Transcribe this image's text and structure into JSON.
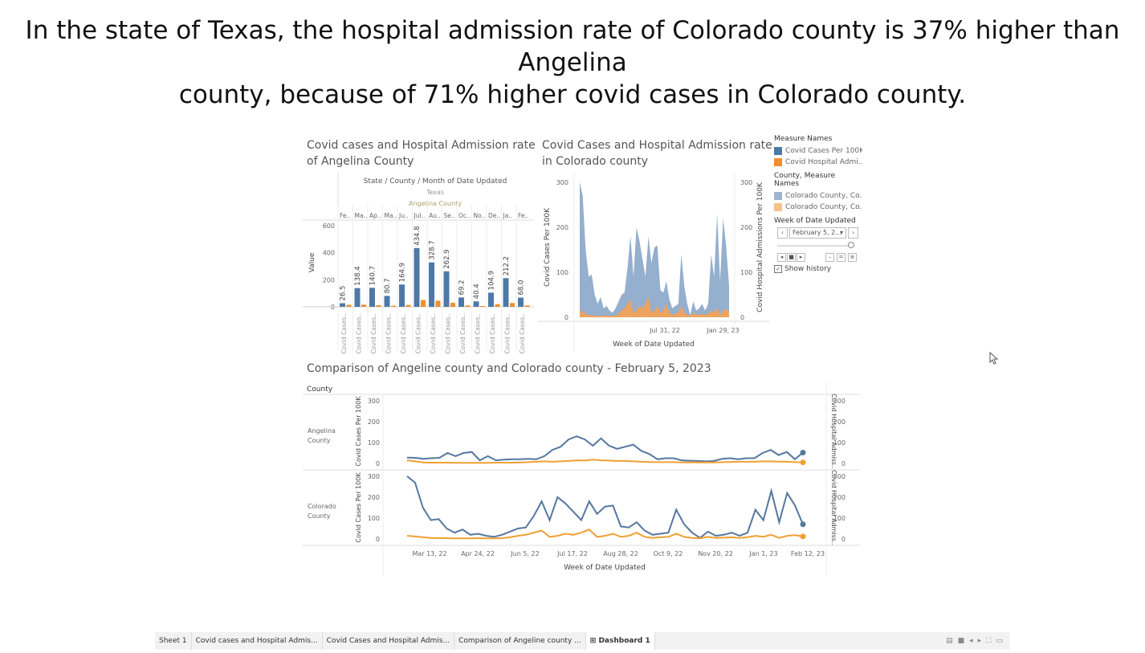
{
  "headline": {
    "line1": "In the state of Texas, the hospital admission rate of Colorado county is 37% higher than Angelina",
    "line2": "county, because of 71% higher covid cases in Colorado county."
  },
  "sheet1": {
    "title_line1": "Covid cases and Hospital Admission rate",
    "title_line2": "of Angelina County",
    "header_line1": "State / County / Month of Date Updated",
    "header_state": "Texas",
    "header_county": "Angelina County",
    "y_label": "Value",
    "colors": {
      "cases": "#4e79a7",
      "hosp": "#f28e2b"
    }
  },
  "sheet2": {
    "title_line1": "Covid Cases and Hospital Admission rate",
    "title_line2": "in Colorado county",
    "y_left": "Covid Cases Per 100K",
    "y_right": "Covid Hospital Admissions Per 100K",
    "x_label": "Week of Date Updated",
    "x_ticks": [
      "Jul 31, 22",
      "Jan 29, 23"
    ]
  },
  "sheet3": {
    "title": "Comparison of Angeline county and Colorado county - February 5, 2023",
    "county_header": "County",
    "rows": [
      "Angelina County",
      "Colorado County"
    ],
    "row_line1": [
      "Angelina",
      "Colorado"
    ],
    "row_line2": [
      "County",
      "County"
    ],
    "y_left": "Covid Cases Per 100K",
    "y_right": "Covid Hospital Admiss..",
    "x_label": "Week of Date Updated",
    "x_ticks": [
      "Mar 13, 22",
      "Apr 24, 22",
      "Jun 5, 22",
      "Jul 17, 22",
      "Aug 28, 22",
      "Oct 9, 22",
      "Nov 20, 22",
      "Jan 1, 23",
      "Feb 12, 23"
    ]
  },
  "legend": {
    "measure_header": "Measure Names",
    "measure_items": [
      {
        "label": "Covid Cases Per 100K",
        "color": "#4e79a7"
      },
      {
        "label": "Covid Hospital Admi...",
        "color": "#f28e2b"
      }
    ],
    "county_header": "County, Measure Names",
    "county_items": [
      {
        "label": "Colorado County, Co...",
        "color": "#a0b4d0"
      },
      {
        "label": "Colorado County, Co...",
        "color": "#f7c189"
      }
    ],
    "week_header": "Week of Date Updated",
    "week_value": "February 5, 2...",
    "show_history": "Show history"
  },
  "tabs": [
    "Sheet 1",
    "Covid cases and Hospital Admis...",
    "Covid Cases and Hospital Admis...",
    "Comparison of Angeline county ...",
    "Dashboard 1"
  ],
  "chart_data": [
    {
      "type": "bar",
      "title": "Covid cases and Hospital Admission rate of Angelina County",
      "ylabel": "Value",
      "ylim": [
        0,
        600
      ],
      "y_ticks": [
        0,
        200,
        400,
        600
      ],
      "categories": [
        "Fe..",
        "Ma..",
        "Ap..",
        "Ma..",
        "Ju..",
        "Jul..",
        "Au..",
        "Se..",
        "Oc..",
        "No..",
        "De..",
        "Ja..",
        "Fe.."
      ],
      "bar_label": "Covid Cases..",
      "series": [
        {
          "name": "Covid Cases Per 100K",
          "values": [
            26.5,
            138.4,
            140.7,
            80.7,
            164.9,
            434.8,
            328.7,
            262.9,
            69.2,
            40.4,
            104.9,
            212.2,
            68.0
          ]
        },
        {
          "name": "Covid Hospital Admi...",
          "values": [
            15,
            16,
            12,
            8,
            14,
            50,
            45,
            30,
            10,
            6,
            20,
            28,
            10
          ]
        }
      ]
    },
    {
      "type": "area",
      "title": "Covid Cases and Hospital Admission rate in Colorado county",
      "xlabel": "Week of Date Updated",
      "ylim": [
        0,
        300
      ],
      "y_ticks": [
        0,
        100,
        200,
        300
      ],
      "x_ticks": [
        "Jul 31, 22",
        "Jan 29, 23"
      ],
      "series": [
        {
          "name": "Colorado County, Co...",
          "values": [
            300,
            270,
            150,
            90,
            95,
            50,
            30,
            45,
            20,
            25,
            15,
            10,
            20,
            35,
            50,
            55,
            110,
            180,
            90,
            200,
            170,
            130,
            90,
            180,
            120,
            155,
            160,
            60,
            55,
            80,
            40,
            20,
            25,
            30,
            140,
            70,
            30,
            5,
            35,
            15,
            20,
            30,
            15,
            30,
            140,
            90,
            230,
            80,
            220,
            160,
            70
          ]
        },
        {
          "name": "Colorado County, Co...",
          "values": [
            15,
            12,
            8,
            5,
            4,
            4,
            3,
            3,
            3,
            4,
            3,
            3,
            4,
            8,
            15,
            20,
            30,
            40,
            10,
            15,
            25,
            20,
            30,
            45,
            10,
            15,
            25,
            10,
            15,
            30,
            10,
            5,
            8,
            10,
            25,
            10,
            5,
            3,
            10,
            5,
            6,
            8,
            5,
            8,
            15,
            10,
            20,
            5,
            15,
            18,
            12
          ]
        }
      ]
    },
    {
      "type": "line",
      "title": "Comparison of Angeline county and Colorado county - February 5, 2023",
      "xlabel": "Week of Date Updated",
      "ylim": [
        0,
        300
      ],
      "y_ticks": [
        0,
        100,
        200,
        300
      ],
      "x_ticks": [
        "Mar 13, 22",
        "Apr 24, 22",
        "Jun 5, 22",
        "Jul 17, 22",
        "Aug 28, 22",
        "Oct 9, 22",
        "Nov 20, 22",
        "Jan 1, 23",
        "Feb 12, 23"
      ],
      "panels": [
        {
          "county": "Angelina County",
          "series": [
            {
              "name": "Covid Cases Per 100K",
              "values": [
                28,
                27,
                22,
                25,
                27,
                50,
                35,
                50,
                55,
                15,
                35,
                15,
                18,
                20,
                20,
                22,
                20,
                35,
                65,
                80,
                115,
                130,
                115,
                85,
                120,
                85,
                70,
                80,
                90,
                60,
                45,
                20,
                25,
                25,
                15,
                13,
                12,
                10,
                12,
                22,
                25,
                20,
                25,
                25,
                50,
                65,
                40,
                55,
                20,
                52
              ]
            },
            {
              "name": "Covid Hospital Admi...",
              "values": [
                15,
                10,
                5,
                4,
                4,
                4,
                3,
                3,
                3,
                3,
                3,
                4,
                4,
                4,
                5,
                6,
                8,
                10,
                8,
                10,
                12,
                15,
                14,
                18,
                15,
                14,
                12,
                12,
                10,
                8,
                7,
                6,
                6,
                6,
                5,
                5,
                5,
                5,
                5,
                6,
                7,
                8,
                8,
                8,
                10,
                10,
                9,
                8,
                6,
                5
              ]
            }
          ]
        },
        {
          "county": "Colorado County",
          "series": [
            {
              "name": "Covid Cases Per 100K",
              "values": [
                300,
                270,
                150,
                90,
                95,
                50,
                30,
                45,
                20,
                25,
                15,
                10,
                20,
                35,
                50,
                55,
                110,
                180,
                90,
                200,
                170,
                130,
                90,
                180,
                120,
                155,
                160,
                60,
                55,
                80,
                40,
                20,
                25,
                30,
                140,
                70,
                30,
                5,
                35,
                15,
                20,
                30,
                15,
                30,
                140,
                90,
                230,
                80,
                220,
                160,
                70
              ]
            },
            {
              "name": "Covid Hospital Admi...",
              "values": [
                15,
                12,
                8,
                5,
                4,
                4,
                3,
                3,
                3,
                4,
                3,
                3,
                4,
                8,
                15,
                20,
                30,
                40,
                10,
                15,
                25,
                20,
                30,
                45,
                10,
                15,
                25,
                10,
                15,
                30,
                10,
                5,
                8,
                10,
                25,
                10,
                5,
                3,
                10,
                5,
                6,
                8,
                5,
                8,
                15,
                10,
                20,
                5,
                15,
                18,
                12
              ]
            }
          ]
        }
      ]
    }
  ]
}
